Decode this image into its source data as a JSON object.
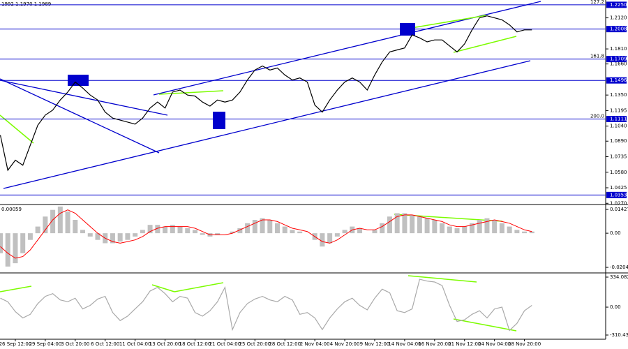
{
  "chart_data": [
    {
      "type": "line",
      "title": "1992 1.1970 1.1989",
      "color": "#000000",
      "values": [
        1.095,
        1.06,
        1.07,
        1.065,
        1.085,
        1.105,
        1.115,
        1.12,
        1.13,
        1.138,
        1.148,
        1.142,
        1.135,
        1.13,
        1.118,
        1.112,
        1.11,
        1.108,
        1.106,
        1.112,
        1.122,
        1.128,
        1.122,
        1.138,
        1.14,
        1.135,
        1.134,
        1.128,
        1.124,
        1.13,
        1.128,
        1.13,
        1.138,
        1.15,
        1.16,
        1.164,
        1.16,
        1.162,
        1.155,
        1.15,
        1.152,
        1.148,
        1.125,
        1.118,
        1.13,
        1.14,
        1.148,
        1.152,
        1.148,
        1.14,
        1.155,
        1.168,
        1.178,
        1.18,
        1.182,
        1.195,
        1.192,
        1.188,
        1.19,
        1.19,
        1.184,
        1.178,
        1.186,
        1.2,
        1.212,
        1.214,
        1.212,
        1.21,
        1.205,
        1.198,
        1.2,
        1.2
      ],
      "ylim": [
        1.0265,
        1.2298
      ],
      "yticks": [
        {
          "value": 1.212,
          "label": "1.2120"
        },
        {
          "value": 1.181,
          "label": "1.1810"
        },
        {
          "value": 1.166,
          "label": "1.1660"
        },
        {
          "value": 1.135,
          "label": "1.1350"
        },
        1.1195,
        {
          "value": 1.104,
          "label": "1.1040"
        },
        {
          "value": 1.089,
          "label": "1.0890"
        },
        1.0735,
        {
          "value": 1.058,
          "label": "1.0580"
        },
        1.0425,
        {
          "value": 1.027,
          "label": "1.0270"
        }
      ],
      "level_color": "#0000cd",
      "levels": [
        {
          "value": 1.225,
          "label": "1.2250",
          "fib_label": "127.2"
        },
        {
          "value": 1.2008,
          "label": "1.2008"
        },
        {
          "value": 1.1709,
          "label": "1.1709",
          "fib_label": "161.8"
        },
        {
          "value": 1.1496,
          "label": "1.1496"
        },
        {
          "value": 1.1111,
          "label": "1.1111",
          "fib_label": "200.0"
        },
        {
          "value": 1.0353,
          "label": "1.0353"
        }
      ]
    },
    {
      "type": "bar",
      "title": "0.00059",
      "color": "#c0c0c0",
      "signal_color": "#ff0000",
      "values": [
        -0.012,
        -0.02,
        -0.018,
        -0.012,
        -0.004,
        0.004,
        0.01,
        0.014,
        0.016,
        0.013,
        0.008,
        0.002,
        -0.002,
        -0.004,
        -0.006,
        -0.006,
        -0.005,
        -0.004,
        -0.002,
        0.002,
        0.005,
        0.005,
        0.004,
        0.005,
        0.004,
        0.003,
        0.002,
        -0.001,
        -0.002,
        -0.001,
        0,
        0.001,
        0.003,
        0.006,
        0.008,
        0.009,
        0.008,
        0.006,
        0.004,
        0.002,
        0.001,
        0,
        -0.004,
        -0.008,
        -0.006,
        -0.002,
        0.002,
        0.004,
        0.003,
        0,
        0.002,
        0.006,
        0.01,
        0.012,
        0.012,
        0.011,
        0.01,
        0.009,
        0.008,
        0.006,
        0.004,
        0.003,
        0.004,
        0.006,
        0.008,
        0.009,
        0.008,
        0.006,
        0.004,
        0.002,
        0.001,
        0.001
      ],
      "signal_values": [
        -0.008,
        -0.012,
        -0.015,
        -0.014,
        -0.01,
        -0.004,
        0.002,
        0.008,
        0.012,
        0.014,
        0.012,
        0.008,
        0.004,
        0,
        -0.003,
        -0.005,
        -0.006,
        -0.005,
        -0.004,
        -0.002,
        0.001,
        0.003,
        0.004,
        0.004,
        0.004,
        0.004,
        0.003,
        0.001,
        -0.001,
        -0.001,
        -0.001,
        0,
        0.002,
        0.004,
        0.006,
        0.008,
        0.008,
        0.007,
        0.005,
        0.003,
        0.002,
        0.001,
        -0.002,
        -0.005,
        -0.006,
        -0.004,
        -0.001,
        0.002,
        0.003,
        0.002,
        0.002,
        0.004,
        0.007,
        0.01,
        0.011,
        0.011,
        0.01,
        0.009,
        0.008,
        0.007,
        0.005,
        0.004,
        0.004,
        0.005,
        0.006,
        0.007,
        0.008,
        0.007,
        0.006,
        0.004,
        0.002,
        0.001
      ],
      "ylim": [
        -0.0234,
        0.0168
      ],
      "yticks": [
        0.01427,
        {
          "value": 0,
          "label": "0.00"
        },
        -0.02049
      ]
    },
    {
      "type": "line",
      "color": "#a9a9a9",
      "values": [
        100,
        60,
        -50,
        -120,
        -80,
        40,
        120,
        150,
        80,
        60,
        100,
        -20,
        20,
        90,
        120,
        -60,
        -150,
        -100,
        -20,
        60,
        180,
        220,
        150,
        60,
        120,
        100,
        -60,
        -100,
        -40,
        60,
        220,
        -250,
        -60,
        40,
        90,
        120,
        80,
        60,
        120,
        80,
        -80,
        -60,
        -120,
        -250,
        -120,
        -20,
        60,
        100,
        20,
        -30,
        100,
        200,
        160,
        -40,
        -60,
        -20,
        310,
        290,
        280,
        240,
        20,
        -160,
        -140,
        -80,
        -40,
        -120,
        -20,
        0,
        -260,
        -180,
        -40,
        20
      ],
      "ylim": [
        -357,
        373
      ],
      "yticks": [
        334.0824,
        {
          "value": 0,
          "label": "0.00"
        },
        -310.434
      ],
      "categories": [
        null,
        null,
        "26 Sep 12:00",
        null,
        null,
        null,
        "29 Sep 04:00",
        null,
        null,
        null,
        "3 Oct 20:00",
        null,
        null,
        null,
        "6 Oct 12:00",
        null,
        null,
        null,
        "11 Oct 04:00",
        null,
        null,
        null,
        "13 Oct 20:00",
        null,
        null,
        null,
        "18 Oct 12:00",
        null,
        null,
        null,
        "21 Oct 04:00",
        null,
        null,
        null,
        "25 Oct 20:00",
        null,
        null,
        null,
        "28 Oct 12:00",
        null,
        null,
        null,
        "2 Nov 04:00",
        null,
        null,
        null,
        "4 Nov 20:00",
        null,
        null,
        null,
        "9 Nov 12:00",
        null,
        null,
        null,
        "14 Nov 04:00",
        null,
        null,
        null,
        "16 Nov 20:00",
        null,
        null,
        null,
        "21 Nov 12:00",
        null,
        null,
        null,
        "24 Nov 04:00",
        null,
        null,
        null,
        "28 Nov 20:00",
        null
      ]
    }
  ]
}
